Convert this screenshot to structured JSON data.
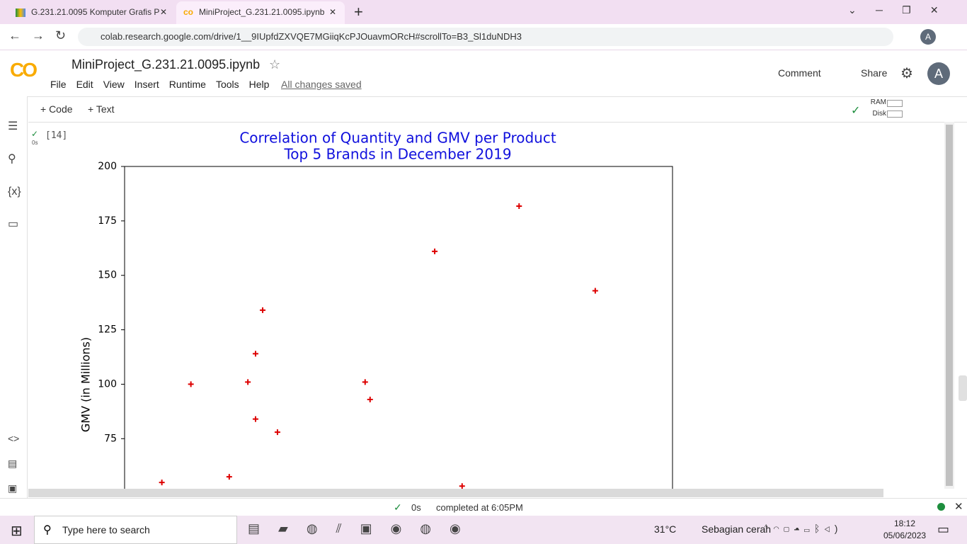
{
  "browser": {
    "tabs": [
      "G.231.21.0095 Komputer Grafis P",
      "MiniProject_G.231.21.0095.ipynb"
    ],
    "url": "colab.research.google.com/drive/1__9IUpfdZXVQE7MGiiqKcPJOuavmORcH#scrollTo=B3_Sl1duNDH3",
    "profile": "A"
  },
  "notebook": {
    "title": "MiniProject_G.231.21.0095.ipynb",
    "menu": [
      "File",
      "Edit",
      "View",
      "Insert",
      "Runtime",
      "Tools",
      "Help"
    ],
    "save_status": "All changes saved",
    "actions": [
      "Comment",
      "Share"
    ],
    "avatar": "A",
    "toolbar": [
      "+ Code",
      "+ Text"
    ],
    "resources": [
      "RAM",
      "Disk"
    ],
    "cell": {
      "execution_count": "[14]",
      "duration": "0s"
    }
  },
  "chart_data": {
    "type": "scatter",
    "title": "Correlation of Quantity and GMV per Product",
    "subtitle": "Top 5 Brands in December 2019",
    "ylabel": "GMV (in Millions)",
    "x": [
      6.8,
      12.1,
      19.1,
      22.5,
      23.9,
      23.9,
      25.2,
      27.9,
      43.9,
      44.8,
      56.6,
      61.6,
      72.0,
      85.9
    ],
    "values": [
      54.9,
      100,
      57.5,
      101,
      84,
      114,
      134,
      78,
      101,
      93,
      161,
      53.2,
      181.8,
      142.9
    ],
    "color": "#dd0000",
    "marker": "+",
    "xlim": [
      0,
      100
    ],
    "ylim": [
      52,
      200
    ],
    "yticks": [
      75,
      100,
      125,
      150,
      175,
      200
    ]
  },
  "status_bar": {
    "duration": "0s",
    "message": "completed at 6:05PM"
  },
  "taskbar": {
    "search": "Type here to search",
    "temperature": "31°C",
    "weather": "Sebagian cerah",
    "time": "18:12",
    "date": "05/06/2023"
  }
}
